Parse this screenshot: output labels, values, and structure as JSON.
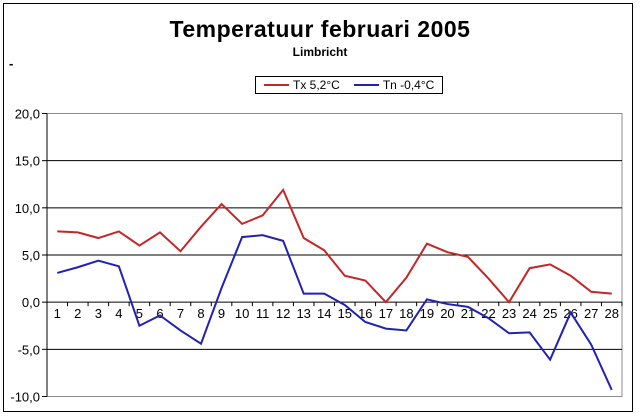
{
  "chart_data": {
    "type": "line",
    "title": "Temperatuur februari 2005",
    "subtitle": "Limbricht",
    "stray_dash": "-",
    "categories": [
      "1",
      "2",
      "3",
      "4",
      "5",
      "6",
      "7",
      "8",
      "9",
      "10",
      "11",
      "12",
      "13",
      "14",
      "15",
      "16",
      "17",
      "18",
      "19",
      "20",
      "21",
      "22",
      "23",
      "24",
      "25",
      "26",
      "27",
      "28"
    ],
    "series": [
      {
        "name": "Tx 5,2°C",
        "color": "#c42727",
        "values": [
          7.5,
          7.4,
          6.8,
          7.5,
          6.0,
          7.4,
          5.4,
          8.0,
          10.4,
          8.3,
          9.2,
          11.9,
          6.8,
          5.5,
          2.8,
          2.3,
          0.0,
          2.6,
          6.2,
          5.3,
          4.8,
          2.5,
          0.0,
          3.6,
          4.0,
          2.8,
          1.1,
          0.9
        ]
      },
      {
        "name": "Tn -0,4°C",
        "color": "#2222b2",
        "values": [
          3.1,
          3.7,
          4.4,
          3.8,
          -2.5,
          -1.4,
          -3.0,
          -4.4,
          1.5,
          6.9,
          7.1,
          6.5,
          0.9,
          0.9,
          -0.3,
          -2.1,
          -2.8,
          -3.0,
          0.3,
          -0.2,
          -0.5,
          -1.7,
          -3.3,
          -3.2,
          -6.1,
          -1.1,
          -4.5,
          -9.3
        ]
      }
    ],
    "xlabel": "",
    "ylabel": "",
    "ylim": [
      -10,
      20
    ],
    "yticks": [
      20,
      15,
      10,
      5,
      0,
      -5,
      -10
    ],
    "ytick_labels": [
      "20,0",
      "15,0",
      "10,0",
      "5,0",
      "0,0",
      "-5,0",
      "-10,0"
    ],
    "grid": true,
    "legend_position": "top-center",
    "colors": {
      "gridline": "#000000",
      "plot_border": "#8c8c8c",
      "axis": "#000000",
      "chart_border": "#000000",
      "background": "#ffffff"
    }
  }
}
